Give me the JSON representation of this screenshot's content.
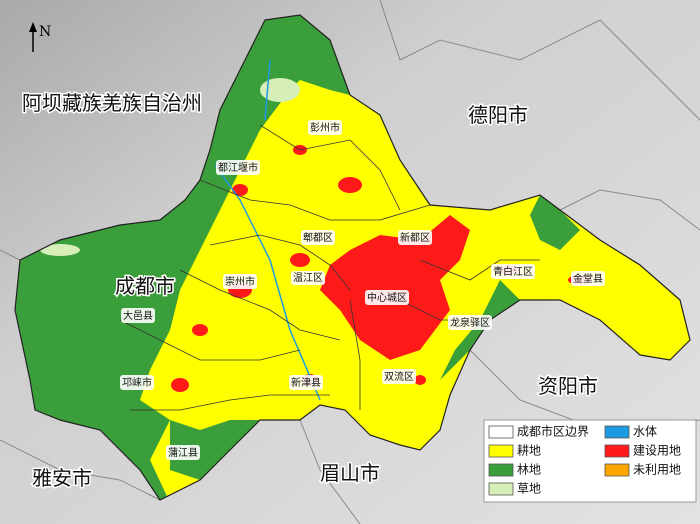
{
  "north_arrow": "N",
  "regions": [
    "阿坝藏族羌族自治州",
    "德阳市",
    "成都市",
    "资阳市",
    "雅安市",
    "眉山市"
  ],
  "districts": [
    "彭州市",
    "都江堰市",
    "郫都区",
    "新都区",
    "温江区",
    "崇州市",
    "中心城区",
    "青白江区",
    "金堂县",
    "大邑县",
    "龙泉驿区",
    "邛崃市",
    "新津县",
    "双流区",
    "蒲江县"
  ],
  "legend": [
    {
      "label": "成都市区边界",
      "color": "#ffffff"
    },
    {
      "label": "水体",
      "color": "#1e9be0"
    },
    {
      "label": "耕地",
      "color": "#ffff00"
    },
    {
      "label": "建设用地",
      "color": "#ff1a1a"
    },
    {
      "label": "林地",
      "color": "#3a9e3a"
    },
    {
      "label": "未利用地",
      "color": "#ffa500"
    },
    {
      "label": "草地",
      "color": "#d6efb8"
    }
  ]
}
